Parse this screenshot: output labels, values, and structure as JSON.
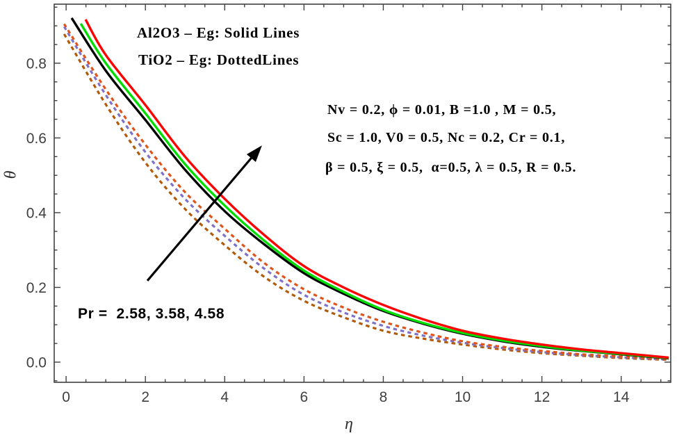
{
  "figure": {
    "background": "#ffffff",
    "legend": {
      "line1": "Al2O3 – Eg: Solid Lines",
      "line2": "TiO2 – Eg: DottedLines"
    },
    "parameters": {
      "line1": "Nv = 0.2, ϕ = 0.01, B =1.0 , M = 0.5,",
      "line2": "Sc = 1.0, V0 = 0.5, Nc = 0.2, Cr = 0.1,",
      "line3": "β = 0.5, ξ = 0.5,  α=0.5, λ = 0.5, R = 0.5."
    },
    "pr_label": "Pr =  2.58, 3.58, 4.58",
    "xlabel": "η",
    "ylabel": "θ"
  },
  "colors": {
    "frame": "#404040",
    "tick_label": "#3f3f3f",
    "annotation_text": "#000000",
    "arrow": "#000000",
    "solid_red": "#ff0000",
    "solid_green": "#00dd00",
    "solid_black": "#000000",
    "dashed_orange": "#e0541c",
    "dashed_purple": "#7e72c8",
    "dashed_brown": "#b25a08"
  },
  "chart_data": {
    "type": "line",
    "title": "",
    "xlabel": "η",
    "ylabel": "θ",
    "xlim": [
      -0.3,
      15.25
    ],
    "ylim": [
      -0.054,
      0.958
    ],
    "grid": false,
    "frame_ticks": "all four sides, pointing inward",
    "x_ticks": [
      0,
      2,
      4,
      6,
      8,
      10,
      12,
      14
    ],
    "x_tick_labels": [
      "0",
      "2",
      "4",
      "6",
      "8",
      "10",
      "12",
      "14"
    ],
    "y_ticks": [
      0.0,
      0.2,
      0.4,
      0.6,
      0.8
    ],
    "y_tick_labels": [
      "0.0",
      "0.2",
      "0.4",
      "0.6",
      "0.8"
    ],
    "x_minor_step": 0.5,
    "y_minor_step": 0.05,
    "legend_position": "annotations inside plot, no legend box",
    "series": [
      {
        "name": "TiO2-Eg Pr=2.58 (dashed brown)",
        "material": "TiO2-Eg",
        "pr": 2.58,
        "style": "dashed",
        "color": "#b25a08",
        "x": [
          -0.05,
          1,
          2,
          3,
          4,
          5,
          6,
          7,
          8,
          9,
          10,
          11,
          12,
          13,
          14,
          15.2
        ],
        "y": [
          0.878,
          0.69,
          0.534,
          0.41,
          0.313,
          0.228,
          0.164,
          0.12,
          0.084,
          0.063,
          0.047,
          0.034,
          0.024,
          0.017,
          0.011,
          0.006
        ]
      },
      {
        "name": "TiO2-Eg Pr=3.58 (dashed purple)",
        "material": "TiO2-Eg",
        "pr": 3.58,
        "style": "dashed",
        "color": "#7e72c8",
        "x": [
          -0.05,
          1,
          2,
          3,
          4,
          5,
          6,
          7,
          8,
          9,
          10,
          11,
          12,
          13,
          14,
          15.2
        ],
        "y": [
          0.898,
          0.715,
          0.562,
          0.437,
          0.338,
          0.25,
          0.18,
          0.133,
          0.097,
          0.071,
          0.052,
          0.038,
          0.027,
          0.019,
          0.013,
          0.007
        ]
      },
      {
        "name": "TiO2-Eg Pr=4.58 (dashed orange-red)",
        "material": "TiO2-Eg",
        "pr": 4.58,
        "style": "dashed",
        "color": "#e0541c",
        "x": [
          -0.05,
          1,
          2,
          3,
          4,
          5,
          6,
          7,
          8,
          9,
          10,
          11,
          12,
          13,
          14,
          15.2
        ],
        "y": [
          0.905,
          0.73,
          0.582,
          0.455,
          0.357,
          0.265,
          0.195,
          0.146,
          0.108,
          0.079,
          0.056,
          0.041,
          0.03,
          0.021,
          0.015,
          0.008
        ]
      },
      {
        "name": "Al2O3-Eg Pr=2.58 (solid black)",
        "material": "Al2O3-Eg",
        "pr": 2.58,
        "style": "solid",
        "color": "#000000",
        "x": [
          0.14,
          1,
          2,
          3,
          4,
          5,
          6,
          7,
          8,
          9,
          10,
          11,
          12,
          13,
          14,
          15.2
        ],
        "y": [
          0.921,
          0.78,
          0.648,
          0.515,
          0.404,
          0.315,
          0.238,
          0.183,
          0.137,
          0.103,
          0.076,
          0.056,
          0.041,
          0.03,
          0.021,
          0.01
        ]
      },
      {
        "name": "Al2O3-Eg Pr=3.58 (solid green)",
        "material": "Al2O3-Eg",
        "pr": 3.58,
        "style": "solid",
        "color": "#00dd00",
        "x": [
          0.37,
          1,
          2,
          3,
          4,
          5,
          6,
          7,
          8,
          9,
          10,
          11,
          12,
          13,
          14,
          15.2
        ],
        "y": [
          0.906,
          0.8,
          0.666,
          0.53,
          0.419,
          0.325,
          0.245,
          0.188,
          0.14,
          0.105,
          0.078,
          0.058,
          0.043,
          0.031,
          0.022,
          0.011
        ]
      },
      {
        "name": "Al2O3-Eg Pr=4.58 (solid red)",
        "material": "Al2O3-Eg",
        "pr": 4.58,
        "style": "solid",
        "color": "#ff0000",
        "x": [
          0.49,
          1,
          2,
          3,
          4,
          5,
          6,
          7,
          8,
          9,
          10,
          11,
          12,
          13,
          14,
          15.2
        ],
        "y": [
          0.917,
          0.822,
          0.688,
          0.55,
          0.437,
          0.34,
          0.257,
          0.2,
          0.153,
          0.115,
          0.084,
          0.063,
          0.047,
          0.034,
          0.024,
          0.012
        ]
      }
    ],
    "annotations": {
      "arrow": {
        "x1": 2.05,
        "y1": 0.218,
        "x2": 4.94,
        "y2": 0.58,
        "direction": "points up-right across curves, increasing Pr"
      }
    }
  }
}
